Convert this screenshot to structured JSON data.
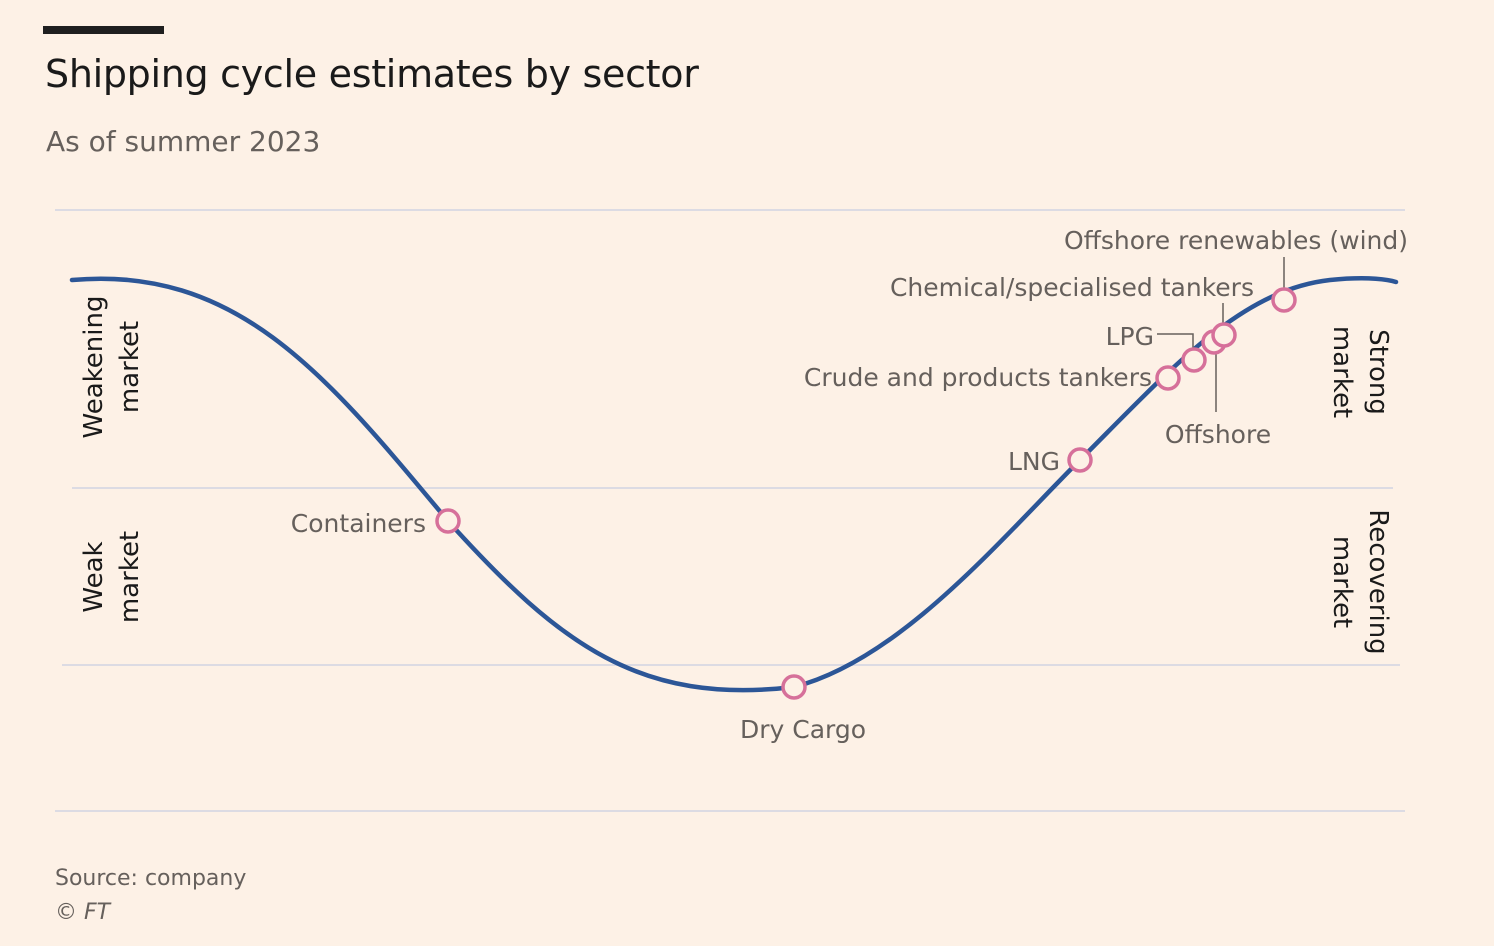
{
  "header": {
    "title": "Shipping cycle estimates by sector",
    "subtitle": "As of summer 2023"
  },
  "footer": {
    "source": "Source: company",
    "credit": "© FT"
  },
  "zones": {
    "weakening": [
      "Weakening",
      "market"
    ],
    "weak": [
      "Weak",
      "market"
    ],
    "strong": [
      "Strong",
      "market"
    ],
    "recovering": [
      "Recovering",
      "market"
    ]
  },
  "sectors": [
    {
      "id": "containers",
      "label": "Containers"
    },
    {
      "id": "dry-cargo",
      "label": "Dry Cargo"
    },
    {
      "id": "lng",
      "label": "LNG"
    },
    {
      "id": "crude",
      "label": "Crude and products tankers"
    },
    {
      "id": "lpg",
      "label": "LPG"
    },
    {
      "id": "offshore",
      "label": "Offshore"
    },
    {
      "id": "chemical",
      "label": "Chemical/specialised tankers"
    },
    {
      "id": "offshore-renewables",
      "label": "Offshore renewables (wind)"
    }
  ],
  "colors": {
    "background": "#fdf1e6",
    "curve": "#2c5697",
    "marker": "#d6709a",
    "gridline": "#dcdbe3",
    "label": "#66605c",
    "zone_label": "#1a1a1a"
  }
}
